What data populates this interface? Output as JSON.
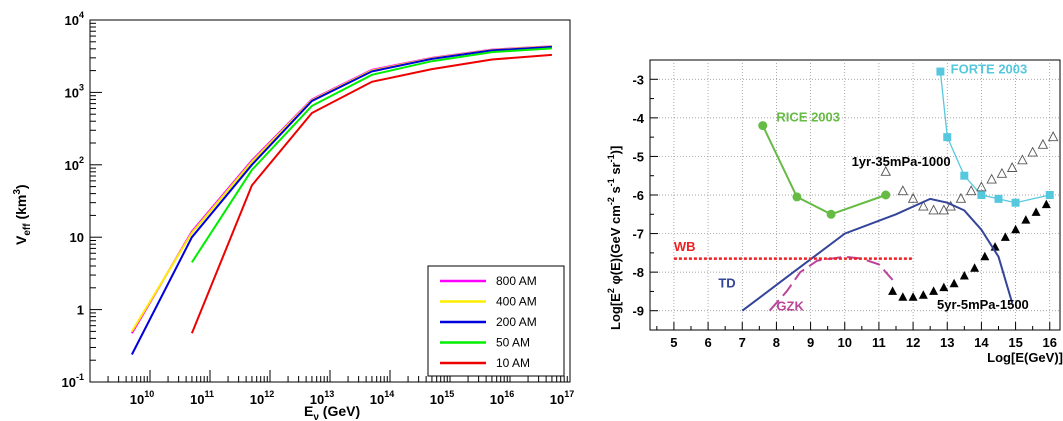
{
  "chart_data": [
    {
      "type": "line",
      "title": "",
      "xlabel_main": "E",
      "xlabel_sub": "ν",
      "xlabel_tail": " (GeV)",
      "ylabel_main": "V",
      "ylabel_sub": "eff",
      "ylabel_tail": " (km",
      "ylabel_sup": "3",
      "ylabel_close": ")",
      "xscale": "log",
      "yscale": "log",
      "xlim_exp": [
        9.0,
        17.0
      ],
      "ylim_exp": [
        -1.0,
        4.0
      ],
      "grid": false,
      "legend_position": "bottom-right",
      "x_tick_labels": [
        {
          "exp": 10,
          "base": "10",
          "sup": "10"
        },
        {
          "exp": 11,
          "base": "10",
          "sup": "11"
        },
        {
          "exp": 12,
          "base": "10",
          "sup": "12"
        },
        {
          "exp": 13,
          "base": "10",
          "sup": "13"
        },
        {
          "exp": 14,
          "base": "10",
          "sup": "14"
        },
        {
          "exp": 15,
          "base": "10",
          "sup": "15"
        },
        {
          "exp": 16,
          "base": "10",
          "sup": "16"
        },
        {
          "exp": 17,
          "base": "10",
          "sup": "17"
        }
      ],
      "y_tick_labels": [
        {
          "exp": -1,
          "base": "10",
          "sup": "-1"
        },
        {
          "exp": 0,
          "base": "1",
          "sup": ""
        },
        {
          "exp": 1,
          "base": "10",
          "sup": ""
        },
        {
          "exp": 2,
          "base": "10",
          "sup": "2"
        },
        {
          "exp": 3,
          "base": "10",
          "sup": "3"
        },
        {
          "exp": 4,
          "base": "10",
          "sup": "4"
        }
      ],
      "series": [
        {
          "name": "800 AM",
          "color": "#ff00ff",
          "x": [
            5000000000.0,
            50000000000.0,
            500000000000.0,
            5000000000000.0,
            50000000000000.0,
            500000000000000.0,
            5000000000000000.0,
            5e+16
          ],
          "y": [
            0.47,
            12,
            115,
            800,
            2050,
            3000,
            3900,
            4350
          ]
        },
        {
          "name": "400 AM",
          "color": "#ffee00",
          "x": [
            5000000000.0,
            50000000000.0,
            500000000000.0,
            5000000000000.0,
            50000000000000.0,
            500000000000000.0,
            5000000000000000.0,
            5e+16
          ],
          "y": [
            0.5,
            11.5,
            110,
            780,
            2000,
            2950,
            3850,
            4300
          ]
        },
        {
          "name": "200 AM",
          "color": "#0000dd",
          "x": [
            5000000000.0,
            50000000000.0,
            500000000000.0,
            5000000000000.0,
            50000000000000.0,
            500000000000000.0,
            5000000000000000.0,
            5e+16
          ],
          "y": [
            0.24,
            10,
            100,
            760,
            1950,
            2900,
            3800,
            4250
          ]
        },
        {
          "name": "50 AM",
          "color": "#00ee00",
          "x": [
            50000000000.0,
            500000000000.0,
            5000000000000.0,
            50000000000000.0,
            500000000000000.0,
            5000000000000000.0,
            5e+16
          ],
          "y": [
            4.5,
            85,
            650,
            1750,
            2700,
            3600,
            4050
          ]
        },
        {
          "name": "10 AM",
          "color": "#ee0000",
          "x": [
            50000000000.0,
            500000000000.0,
            5000000000000.0,
            50000000000000.0,
            500000000000000.0,
            5000000000000000.0,
            5e+16
          ],
          "y": [
            0.47,
            52,
            520,
            1400,
            2100,
            2850,
            3300
          ]
        }
      ]
    },
    {
      "type": "line",
      "title": "",
      "xlabel": "Log[E(GeV)]",
      "ylabel_parts": [
        "Log[E",
        "2",
        " φ(E)(GeV cm",
        "-2",
        " s",
        "-1",
        " sr",
        "-1",
        ")]"
      ],
      "xlim": [
        4.3,
        16.3
      ],
      "ylim": [
        -9.5,
        -2.5
      ],
      "x_ticks": [
        "5",
        "6",
        "7",
        "8",
        "9",
        "10",
        "11",
        "12",
        "13",
        "14",
        "15",
        "16"
      ],
      "y_ticks": [
        "-3",
        "-4",
        "-5",
        "-6",
        "-7",
        "-8",
        "-9"
      ],
      "grid": true,
      "series": [
        {
          "name": "RICE 2003",
          "color": "#66bb44",
          "marker": "circle",
          "x": [
            7.6,
            8.6,
            9.6,
            11.2
          ],
          "y": [
            -4.2,
            -6.05,
            -6.5,
            -6.0
          ]
        },
        {
          "name": "FORTE 2003",
          "color": "#55c8dd",
          "marker": "square",
          "x": [
            12.8,
            13.0,
            13.5,
            14.0,
            14.5,
            15.0,
            16.0
          ],
          "y": [
            -2.8,
            -4.5,
            -5.5,
            -6.0,
            -6.1,
            -6.2,
            -6.0
          ]
        },
        {
          "name": "1yr-35mPa-1000",
          "color": "#555555",
          "marker": "open-triangle",
          "x": [
            11.2,
            11.7,
            12.0,
            12.3,
            12.6,
            12.9,
            13.1,
            13.4,
            13.7,
            14.0,
            14.3,
            14.6,
            14.9,
            15.2,
            15.5,
            15.8,
            16.1
          ],
          "y": [
            -5.4,
            -5.9,
            -6.1,
            -6.3,
            -6.4,
            -6.4,
            -6.3,
            -6.1,
            -5.9,
            -5.8,
            -5.6,
            -5.45,
            -5.3,
            -5.1,
            -4.9,
            -4.7,
            -4.5
          ]
        },
        {
          "name": "5yr-5mPa-1500",
          "color": "#000000",
          "marker": "filled-triangle",
          "x": [
            11.4,
            11.7,
            12.0,
            12.3,
            12.6,
            12.9,
            13.2,
            13.5,
            13.8,
            14.1,
            14.4,
            14.7,
            15.0,
            15.3,
            15.6,
            15.9
          ],
          "y": [
            -8.5,
            -8.65,
            -8.65,
            -8.6,
            -8.5,
            -8.4,
            -8.3,
            -8.1,
            -7.9,
            -7.6,
            -7.35,
            -7.1,
            -6.9,
            -6.65,
            -6.45,
            -6.25
          ]
        },
        {
          "name": "TD",
          "color": "#334499",
          "style": "solid",
          "x": [
            7.0,
            8.5,
            10.0,
            11.5,
            12.5,
            13.0,
            13.5,
            14.0,
            14.5,
            14.9
          ],
          "y": [
            -9.0,
            -8.0,
            -7.0,
            -6.5,
            -6.1,
            -6.2,
            -6.4,
            -6.9,
            -7.6,
            -8.8
          ]
        },
        {
          "name": "GZK",
          "color": "#bb4499",
          "style": "dashed",
          "x": [
            7.8,
            8.3,
            8.7,
            9.2,
            10.0,
            10.5,
            11.0,
            11.4
          ],
          "y": [
            -9.0,
            -8.5,
            -8.0,
            -7.7,
            -7.6,
            -7.65,
            -7.8,
            -8.2
          ]
        },
        {
          "name": "WB",
          "color": "#ee2222",
          "style": "dotted",
          "x": [
            5.0,
            12.0
          ],
          "y": [
            -7.65,
            -7.65
          ]
        }
      ],
      "annotations": [
        {
          "text": "RICE 2003",
          "color": "#66bb44",
          "x": 8.0,
          "y": -4.1
        },
        {
          "text": "FORTE 2003",
          "color": "#55c8dd",
          "x": 13.1,
          "y": -2.85
        },
        {
          "text": "1yr-35mPa-1000",
          "color": "#000000",
          "x": 10.2,
          "y": -5.25
        },
        {
          "text": "WB",
          "color": "#ee2222",
          "x": 5.0,
          "y": -7.45
        },
        {
          "text": "TD",
          "color": "#334499",
          "x": 6.3,
          "y": -8.4
        },
        {
          "text": "GZK",
          "color": "#bb4499",
          "x": 8.0,
          "y": -9.0
        },
        {
          "text": "5yr-5mPa-1500",
          "color": "#000000",
          "x": 12.7,
          "y": -8.95
        }
      ]
    }
  ]
}
